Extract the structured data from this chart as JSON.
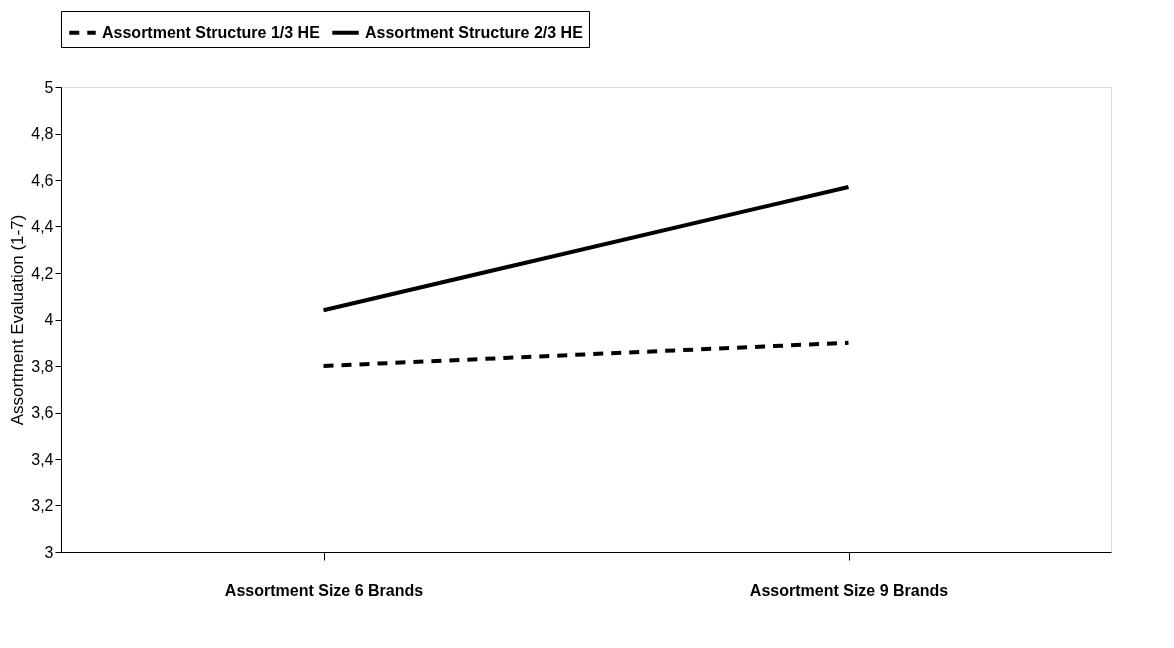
{
  "chart_data": {
    "type": "line",
    "ylabel": "Assortment Evaluation (1-7)",
    "categories": [
      "Assortment Size 6 Brands",
      "Assortment Size 9 Brands"
    ],
    "series": [
      {
        "name": "Assortment Structure 1/3 HE",
        "color": "#000000",
        "line_style": "dashed",
        "values": [
          3.8,
          3.9
        ]
      },
      {
        "name": "Assortment Structure 2/3 HE",
        "color": "#000000",
        "line_style": "solid",
        "values": [
          4.04,
          4.57
        ]
      }
    ],
    "ylim": [
      3,
      5
    ],
    "yticks": [
      3,
      {
        "value": 3.2,
        "label": "3,2"
      },
      {
        "value": 3.4,
        "label": "3,4"
      },
      {
        "value": 3.6,
        "label": "3,6"
      },
      {
        "value": 3.8,
        "label": "3,8"
      },
      4,
      {
        "value": 4.2,
        "label": "4,2"
      },
      {
        "value": 4.4,
        "label": "4,4"
      },
      {
        "value": 4.6,
        "label": "4,6"
      },
      {
        "value": 4.8,
        "label": "4,8"
      },
      5
    ],
    "grid": false,
    "legend": "top",
    "marker": "none"
  }
}
